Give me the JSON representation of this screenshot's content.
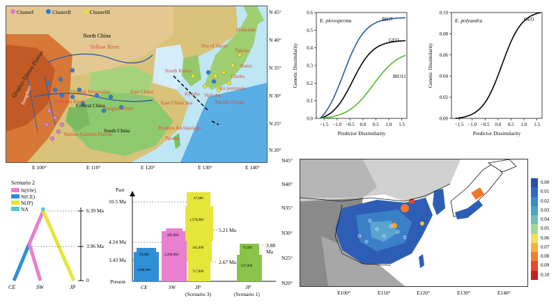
{
  "map_top": {
    "legend": [
      "ClusterI",
      "ClusterII",
      "ClusterIII"
    ],
    "legend_colors": [
      "#e07bd0",
      "#2a7fd4",
      "#e8e23a"
    ],
    "regions": [
      "North China",
      "Yellow River",
      "Qinghai-Tibetan Plateau",
      "Hengduan",
      "Qinling Mountains",
      "Sichuan Basin",
      "Central China",
      "Yangtze River",
      "East China",
      "South China",
      "Yunnan-Guizhou Plateau",
      "Taiwan",
      "Ryukyu Archipelago",
      "East China Sea",
      "Pacific Ocean",
      "Sea of Japan",
      "South Korea",
      "Kyushu",
      "Shikoku",
      "Kii peninsula",
      "Chubu",
      "Hokkaido",
      "Tohoku",
      "Kanto"
    ],
    "lat_labels": [
      "N 45°",
      "N 40°",
      "N 35°",
      "N 30°",
      "N 25°",
      "N 20°"
    ],
    "lon_labels": [
      "E 100°",
      "E 110°",
      "E 120°",
      "E 130°",
      "E 140°"
    ]
  },
  "plot_left": {
    "title": "E. pleiosperma",
    "ylabel": "Genetic Dissimilarity",
    "xlabel": "Predictor Dissimilarity",
    "x_ticks": [
      "−1.5",
      "−1.0",
      "−0.5",
      "0.0",
      "0.5",
      "1.0",
      "1.5"
    ],
    "y_ticks": [
      "0.0",
      "0.1",
      "0.2",
      "0.3",
      "0.4",
      "0.5",
      "0.6"
    ],
    "series": [
      "BIO7",
      "GEO",
      "BIO11"
    ],
    "colors": [
      "#2456a6",
      "#000000",
      "#4cb82c"
    ]
  },
  "plot_right": {
    "title": "E. polyandra",
    "ylabel": "Genetic Dissimilarity",
    "xlabel": "Predictor Dissimilarity",
    "x_ticks": [
      "−1.5",
      "−1.0",
      "−0.5",
      "0.0",
      "0.5",
      "1.0",
      "1.5"
    ],
    "y_ticks": [
      "0.00",
      "0.02",
      "0.04",
      "0.06",
      "0.08",
      "0.10"
    ],
    "series": [
      "GEO"
    ]
  },
  "scenario": {
    "title": "Scenario 2",
    "legend": [
      "N(SW)",
      "N(CE)",
      "N(JP)",
      "NA"
    ],
    "legend_colors": [
      "#e87fcf",
      "#2f8fd6",
      "#e5e53a",
      "#54c6cf"
    ],
    "tips": [
      "CE",
      "SW",
      "JP"
    ],
    "times": [
      "6.39 Ma",
      "3.96 Ma",
      "0"
    ]
  },
  "bar_chart": {
    "past_label": "Past",
    "present_label": "Present",
    "y_labels": [
      "10.5 Ma",
      "4.24 Ma",
      "3.43 Ma"
    ],
    "categories": [
      "CE",
      "SW",
      "JP",
      "JP"
    ],
    "sub_labels": [
      "",
      "",
      "(Scenario 3)",
      "(Scenario 1)"
    ],
    "ce": [
      "59,900",
      "1,690,000"
    ],
    "sw": [
      "285,000",
      "2,290,000"
    ],
    "jp3": [
      "47,000",
      "1,570,000",
      "182,000",
      "717,000"
    ],
    "jp1": [
      "70,400",
      "527,000"
    ],
    "annotations": [
      "5.21 Ma",
      "2.67 Ma",
      "3.88 Ma"
    ]
  },
  "map_bottom": {
    "lat_labels": [
      "N45°",
      "N40°",
      "N35°",
      "N30°",
      "N25°",
      "N20°"
    ],
    "lon_labels": [
      "E100°",
      "E110°",
      "E120°",
      "E130°",
      "E140°"
    ],
    "scale": [
      "0.00",
      "0.01",
      "0.02",
      "0.03",
      "0.04",
      "0.05",
      "0.06",
      "0.07",
      "0.08",
      "0.09",
      "0.10"
    ]
  }
}
